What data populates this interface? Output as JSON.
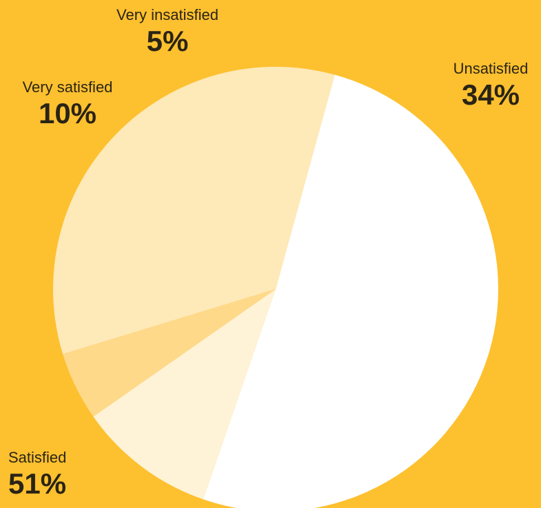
{
  "chart_data": {
    "type": "pie",
    "title": "",
    "slices": [
      {
        "label": "Unsatisfied",
        "value": 34,
        "value_label": "34%",
        "color": "#FEE9B8"
      },
      {
        "label": "Satisfied",
        "value": 51,
        "value_label": "51%",
        "color": "#FFFFFF"
      },
      {
        "label": "Very satisfied",
        "value": 10,
        "value_label": "10%",
        "color": "#FEF3D7"
      },
      {
        "label": "Very insatisfied",
        "value": 5,
        "value_label": "5%",
        "color": "#FED98A"
      }
    ],
    "legend": "none",
    "colors": {
      "background": "#FDC02F",
      "text": "#2A2416"
    }
  }
}
